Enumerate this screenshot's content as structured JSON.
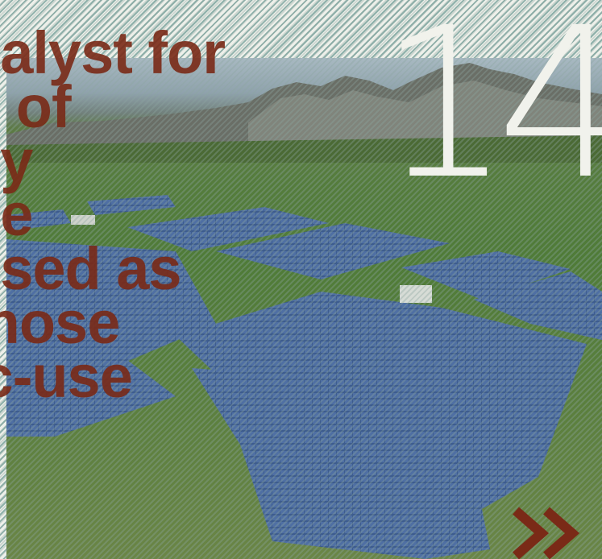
{
  "headline": {
    "lines": [
      "nalyst for",
      "n of",
      "by",
      "ne",
      "used as",
      "those",
      "ic-use"
    ]
  },
  "page_number": "14",
  "next_arrow": {
    "icon": "double-chevron-right-icon",
    "color": "#7a2a17"
  },
  "colors": {
    "headline": "#7a2a17",
    "page_number": "#f1f2ec",
    "stripe": "#8fb1ab",
    "background": "#ecefe8"
  }
}
